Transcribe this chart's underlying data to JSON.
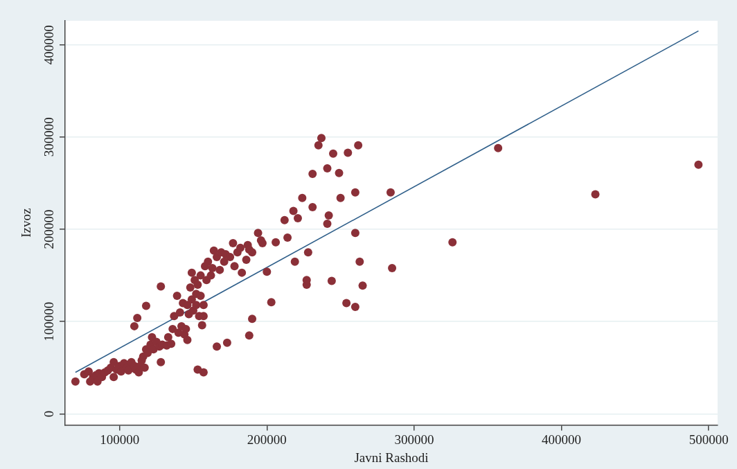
{
  "chart_data": {
    "type": "scatter",
    "xlabel": "Javni Rashodi",
    "ylabel": "Izvoz",
    "xlim": [
      63000,
      506000
    ],
    "ylim": [
      -12000,
      426000
    ],
    "xticks": [
      100000,
      200000,
      300000,
      400000,
      500000
    ],
    "yticks": [
      0,
      100000,
      200000,
      300000,
      400000
    ],
    "grid": "y",
    "legend": false,
    "series": [
      {
        "type": "scatter",
        "marker": "circle",
        "color": "#8b3038",
        "x": [
          70000,
          76000,
          79000,
          80000,
          82000,
          84000,
          85000,
          86000,
          88000,
          90000,
          92000,
          94000,
          96000,
          96000,
          98000,
          100000,
          101000,
          103000,
          105000,
          106000,
          108000,
          110000,
          111000,
          113000,
          114000,
          115000,
          116000,
          117000,
          118000,
          119000,
          121000,
          122000,
          123000,
          125000,
          127000,
          129000,
          132000,
          133000,
          135000,
          136000,
          137000,
          139000,
          140000,
          141000,
          142000,
          143000,
          144000,
          145000,
          146000,
          147000,
          148000,
          149000,
          149000,
          150000,
          151000,
          152000,
          152000,
          153000,
          154000,
          155000,
          155000,
          156000,
          157000,
          157000,
          158000,
          159000,
          160000,
          162000,
          163000,
          164000,
          166000,
          168000,
          169000,
          171000,
          172000,
          175000,
          177000,
          178000,
          180000,
          182000,
          183000,
          186000,
          187000,
          188000,
          190000,
          194000,
          196000,
          197000,
          493000,
          423000,
          357000,
          326000,
          284000,
          285000,
          265000,
          263000,
          260000,
          260000,
          262000,
          260000,
          254000,
          255000,
          250000,
          249000,
          245000,
          244000,
          241000,
          242000,
          241000,
          237000,
          235000,
          231000,
          231000,
          228000,
          227000,
          227000,
          224000,
          221000,
          218000,
          219000,
          214000,
          212000,
          206000,
          203000,
          200000,
          190000,
          188000,
          173000,
          166000,
          157000,
          153000,
          128000,
          118000,
          112000,
          110000,
          128000,
          146000
        ],
        "values": [
          35000,
          43000,
          46000,
          35000,
          40000,
          42000,
          35000,
          44000,
          40000,
          45000,
          47000,
          50000,
          56000,
          40000,
          48000,
          52000,
          46000,
          55000,
          50000,
          47000,
          56000,
          52000,
          48000,
          45000,
          52000,
          58000,
          62000,
          50000,
          70000,
          66000,
          75000,
          83000,
          70000,
          78000,
          73000,
          75000,
          74000,
          83000,
          76000,
          92000,
          106000,
          128000,
          88000,
          110000,
          95000,
          120000,
          86000,
          92000,
          118000,
          108000,
          137000,
          124000,
          153000,
          112000,
          145000,
          130000,
          118000,
          140000,
          106000,
          150000,
          128000,
          96000,
          118000,
          106000,
          160000,
          145000,
          165000,
          150000,
          158000,
          177000,
          170000,
          156000,
          175000,
          165000,
          173000,
          170000,
          185000,
          160000,
          175000,
          180000,
          153000,
          167000,
          183000,
          178000,
          175000,
          196000,
          188000,
          185000,
          270000,
          238000,
          288000,
          186000,
          240000,
          158000,
          139000,
          165000,
          196000,
          240000,
          291000,
          116000,
          120000,
          283000,
          234000,
          261000,
          282000,
          144000,
          266000,
          215000,
          206000,
          299000,
          291000,
          260000,
          224000,
          175000,
          140000,
          145000,
          234000,
          212000,
          220000,
          165000,
          191000,
          210000,
          186000,
          121000,
          154000,
          103000,
          85000,
          77000,
          73000,
          45000,
          48000,
          138000,
          117000,
          104000,
          95000,
          56000,
          80000
        ]
      },
      {
        "type": "line",
        "marker": "none",
        "color": "#2f5f8a",
        "x": [
          70000,
          493000
        ],
        "values": [
          45000,
          415000
        ]
      }
    ]
  }
}
